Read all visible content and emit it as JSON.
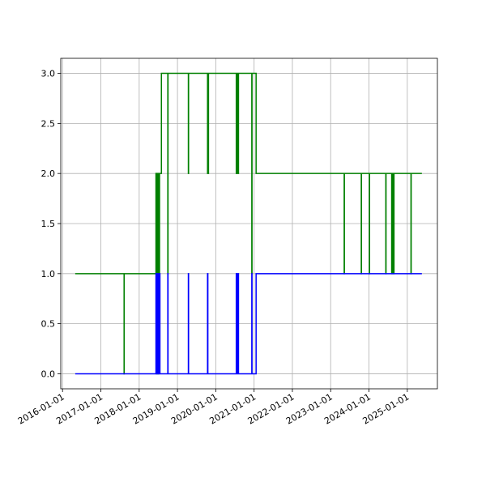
{
  "chart_data": {
    "type": "line",
    "title": "",
    "xlabel": "",
    "ylabel": "",
    "grid": true,
    "legend": "none",
    "x_ticks": [
      "2016-01-01",
      "2017-01-01",
      "2018-01-01",
      "2019-01-01",
      "2020-01-01",
      "2021-01-01",
      "2022-01-01",
      "2023-01-01",
      "2024-01-01",
      "2025-01-01"
    ],
    "y_ticks": [
      "0.0",
      "0.5",
      "1.0",
      "1.5",
      "2.0",
      "2.5",
      "3.0"
    ],
    "xlim": [
      "2015-12-15",
      "2025-10-15"
    ],
    "ylim": [
      -0.15,
      3.15
    ],
    "series": [
      {
        "color": "#008000",
        "step": "post",
        "points": [
          [
            "2016-05-01",
            1
          ],
          [
            "2017-08-10",
            0
          ],
          [
            "2017-08-11",
            1
          ],
          [
            "2018-06-10",
            2
          ],
          [
            "2018-06-15",
            0
          ],
          [
            "2018-06-20",
            2
          ],
          [
            "2018-06-25",
            0
          ],
          [
            "2018-06-30",
            2
          ],
          [
            "2018-07-03",
            0
          ],
          [
            "2018-07-06",
            2
          ],
          [
            "2018-07-10",
            1
          ],
          [
            "2018-07-14",
            2
          ],
          [
            "2018-08-01",
            3
          ],
          [
            "2018-10-01",
            1
          ],
          [
            "2018-10-03",
            3
          ],
          [
            "2019-04-15",
            2
          ],
          [
            "2019-04-17",
            3
          ],
          [
            "2019-10-15",
            2
          ],
          [
            "2019-10-18",
            3
          ],
          [
            "2019-10-21",
            2
          ],
          [
            "2019-10-24",
            3
          ],
          [
            "2020-07-15",
            2
          ],
          [
            "2020-07-18",
            3
          ],
          [
            "2020-07-21",
            2
          ],
          [
            "2020-07-24",
            3
          ],
          [
            "2020-07-27",
            2
          ],
          [
            "2020-07-30",
            3
          ],
          [
            "2020-08-02",
            2
          ],
          [
            "2020-08-05",
            3
          ],
          [
            "2020-12-10",
            1
          ],
          [
            "2020-12-12",
            3
          ],
          [
            "2021-01-20",
            2
          ],
          [
            "2023-05-10",
            1
          ],
          [
            "2023-05-12",
            2
          ],
          [
            "2023-10-20",
            1
          ],
          [
            "2023-10-22",
            2
          ],
          [
            "2024-01-05",
            1
          ],
          [
            "2024-01-07",
            2
          ],
          [
            "2024-06-10",
            1
          ],
          [
            "2024-06-12",
            2
          ],
          [
            "2024-08-05",
            1
          ],
          [
            "2024-08-07",
            2
          ],
          [
            "2024-08-15",
            1
          ],
          [
            "2024-08-17",
            2
          ],
          [
            "2024-08-25",
            1
          ],
          [
            "2024-08-27",
            2
          ],
          [
            "2025-02-05",
            1
          ],
          [
            "2025-02-07",
            2
          ],
          [
            "2025-05-20",
            2
          ]
        ]
      },
      {
        "color": "#0000ff",
        "step": "post",
        "points": [
          [
            "2016-05-01",
            0
          ],
          [
            "2018-06-10",
            1
          ],
          [
            "2018-06-15",
            0
          ],
          [
            "2018-06-20",
            1
          ],
          [
            "2018-06-25",
            0
          ],
          [
            "2018-06-30",
            1
          ],
          [
            "2018-07-03",
            0
          ],
          [
            "2018-07-06",
            1
          ],
          [
            "2018-07-10",
            0
          ],
          [
            "2018-07-14",
            1
          ],
          [
            "2018-07-18",
            0
          ],
          [
            "2018-10-01",
            1
          ],
          [
            "2018-10-03",
            0
          ],
          [
            "2019-04-15",
            1
          ],
          [
            "2019-04-17",
            0
          ],
          [
            "2019-10-15",
            1
          ],
          [
            "2019-10-18",
            0
          ],
          [
            "2020-07-15",
            1
          ],
          [
            "2020-07-18",
            0
          ],
          [
            "2020-07-21",
            1
          ],
          [
            "2020-07-24",
            0
          ],
          [
            "2020-07-27",
            1
          ],
          [
            "2020-07-30",
            0
          ],
          [
            "2020-08-02",
            1
          ],
          [
            "2020-08-05",
            0
          ],
          [
            "2020-12-10",
            1
          ],
          [
            "2020-12-12",
            0
          ],
          [
            "2021-01-20",
            1
          ],
          [
            "2025-05-20",
            1
          ]
        ]
      }
    ]
  }
}
